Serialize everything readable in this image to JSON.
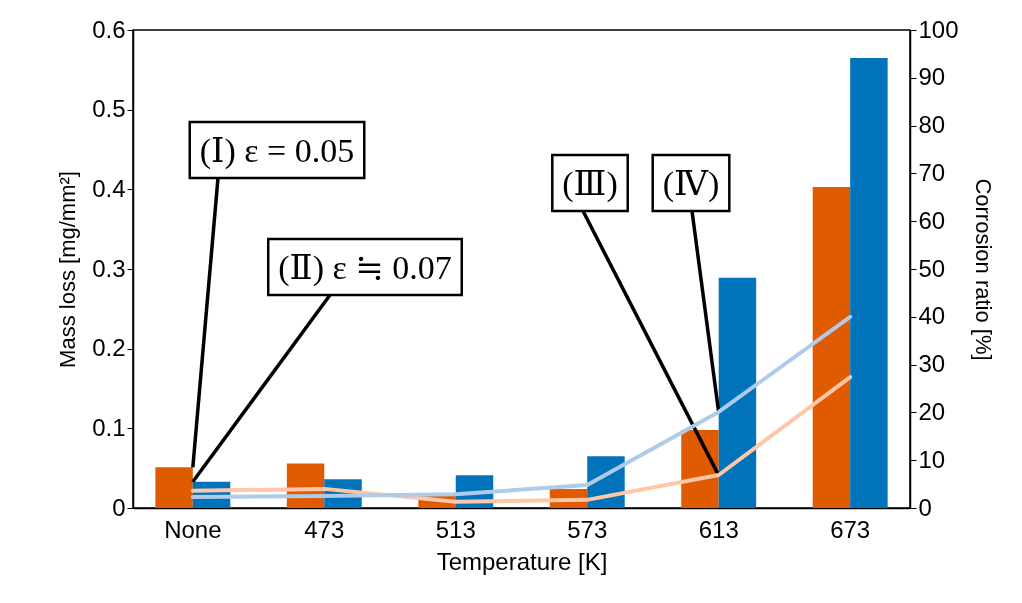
{
  "chart_data": {
    "type": "bar",
    "xlabel": "Temperature [K]",
    "ylabel": "Mass loss [mg/mm²]",
    "y2label": "Corrosion ratio [%]",
    "categories": [
      "None",
      "473",
      "513",
      "573",
      "613",
      "673"
    ],
    "series": [
      {
        "color": "#e05a00",
        "values": [
          0.051,
          0.056,
          0.015,
          0.024,
          0.098,
          0.403
        ]
      },
      {
        "color": "#0073ba",
        "values": [
          0.033,
          0.036,
          0.041,
          0.065,
          0.289,
          0.565
        ]
      },
      {
        "type": "line",
        "axis": "y2",
        "color": "#ffc6a8",
        "values": [
          3.6,
          4.0,
          1.3,
          1.7,
          6.9,
          27.4
        ]
      },
      {
        "type": "line",
        "axis": "y2",
        "color": "#aecbea",
        "values": [
          2.3,
          2.5,
          2.9,
          4.8,
          20.1,
          40.0
        ]
      }
    ],
    "ylim": [
      0,
      0.6
    ],
    "yticks": [
      0,
      0.1,
      0.2,
      0.3,
      0.4,
      0.5,
      0.6
    ],
    "y2lim": [
      0,
      100
    ],
    "y2ticks": [
      0,
      10,
      20,
      30,
      40,
      50,
      60,
      70,
      80,
      90,
      100
    ],
    "annotations": [
      {
        "text": "(Ⅰ) ε = 0.05",
        "x": "None",
        "y": 0.051
      },
      {
        "text": "(Ⅱ) ε ≒ 0.07",
        "x": "None",
        "y": 0.033
      },
      {
        "text": "(Ⅲ)",
        "x": "613",
        "y": 0.041
      },
      {
        "text": "(Ⅳ)",
        "x": "613",
        "y": 0.12
      }
    ],
    "grid": false,
    "legend": false,
    "marker": "none",
    "line_style": "solid"
  }
}
